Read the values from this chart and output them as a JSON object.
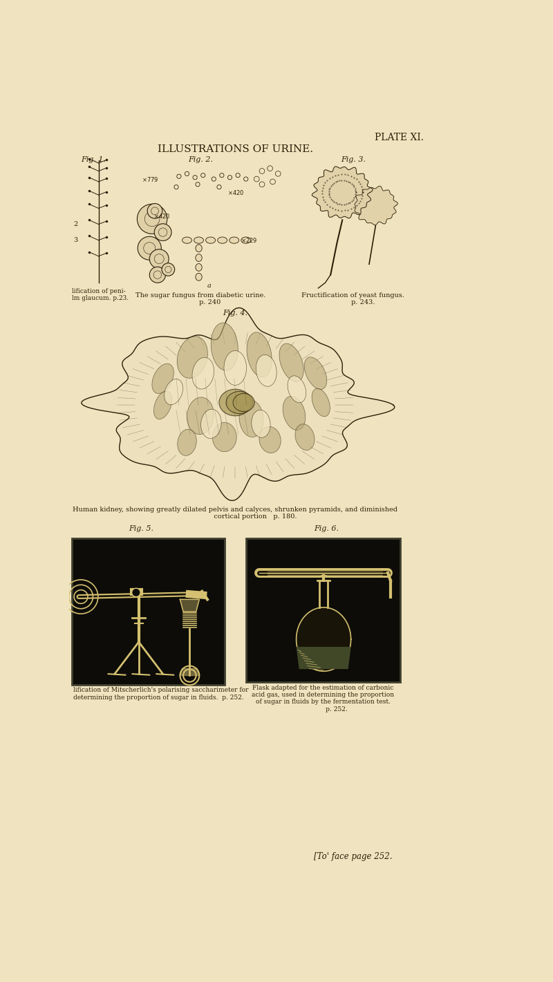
{
  "bg_color": "#f0e4c0",
  "text_color": "#2a1f08",
  "plate_text": "PLATE XI.",
  "title": "ILLUSTRATIONS OF URINE.",
  "fig1_label": "Fig. 1.",
  "fig2_label": "Fig. 2.",
  "fig3_label": "Fig. 3.",
  "fig4_label": "Fig. 4.",
  "fig5_label": "Fig. 5.",
  "fig6_label": "Fig. 6.",
  "fig1_caption": "lification of peni-\nlm glaucum. p.23.",
  "fig2_caption": "The sugar fungus from diabetic urine.\n         p. 240",
  "fig3_caption": "Fructification of yeast fungus.\n         p. 243.",
  "fig4_caption": "Human kidney, showing greatly dilated pelvis and calyces, shrunken pyramids, and diminished\n                   cortical portion   p. 180.",
  "fig5_caption": "lification of Mitscherlich's polarising saccharimeter for\ndetermining the proportion of sugar in fluids.  p. 252.",
  "fig6_caption": "Flask adapted for the estimation of carbonic\nacid gas, used in determining the proportion\nof sugar in fluids by the fermentation test.\n              p. 252.",
  "bottom_text": "[To' face page 252.",
  "dark_box_color": "#0d0c08",
  "line_color": "#d4c070"
}
